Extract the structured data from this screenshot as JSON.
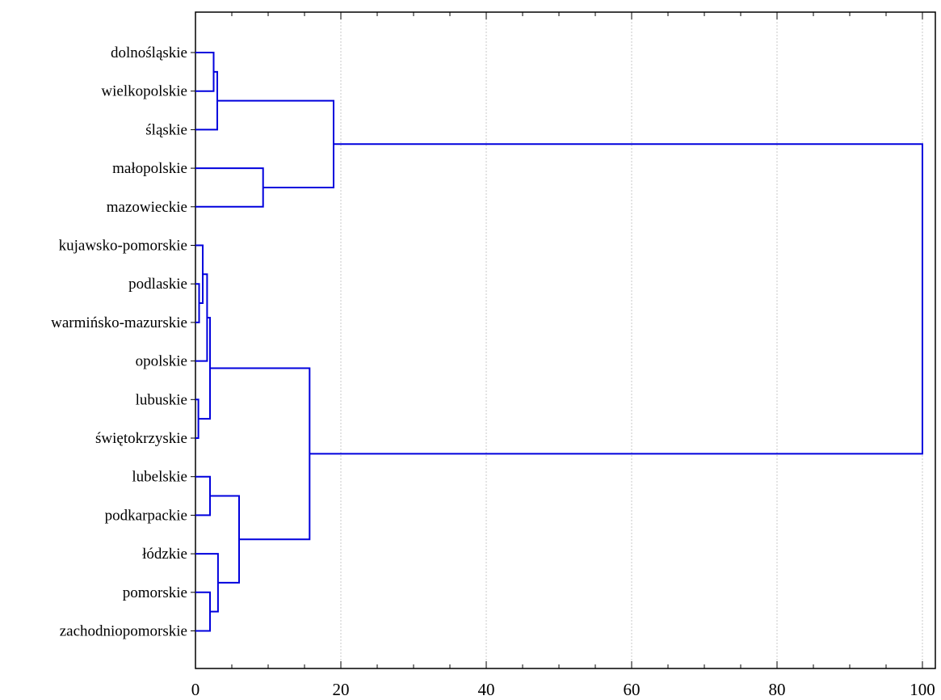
{
  "chart_data": {
    "type": "dendrogram",
    "orientation": "horizontal",
    "title": "",
    "xlabel": "",
    "ylabel": "",
    "xlim": [
      0,
      103
    ],
    "xticks": [
      0,
      20,
      40,
      60,
      80,
      100
    ],
    "xtick_labels": [
      "0",
      "20",
      "40",
      "60",
      "80",
      "100"
    ],
    "grid": "vertical dotted",
    "link_color": "#0000dd",
    "leaves": [
      "dolnośląskie",
      "wielkopolskie",
      "śląskie",
      "małopolskie",
      "mazowieckie",
      "kujawsko-pomorskie",
      "podlaskie",
      "warmińsko-mazurskie",
      "opolskie",
      "lubuskie",
      "świętokrzyskie",
      "lubelskie",
      "podkarpackie",
      "łódzkie",
      "pomorskie",
      "zachodniopomorskie"
    ],
    "merges": [
      {
        "left": "dolnośląskie",
        "right": "wielkopolskie",
        "distance": 2.5
      },
      {
        "left": "m1",
        "right": "śląskie",
        "distance": 3.0
      },
      {
        "left": "małopolskie",
        "right": "mazowieckie",
        "distance": 9.3
      },
      {
        "left": "m2",
        "right": "m3",
        "distance": 19.0
      },
      {
        "left": "podlaskie",
        "right": "warmińsko-mazurskie",
        "distance": 0.5
      },
      {
        "left": "kujawsko-pomorskie",
        "right": "m5",
        "distance": 1.0
      },
      {
        "left": "m6",
        "right": "opolskie",
        "distance": 1.6
      },
      {
        "left": "lubuskie",
        "right": "świętokrzyskie",
        "distance": 0.4
      },
      {
        "left": "m7",
        "right": "m8",
        "distance": 2.0
      },
      {
        "left": "lubelskie",
        "right": "podkarpackie",
        "distance": 2.0
      },
      {
        "left": "pomorskie",
        "right": "zachodniopomorskie",
        "distance": 2.0
      },
      {
        "left": "łódzkie",
        "right": "m11",
        "distance": 3.1
      },
      {
        "left": "m10",
        "right": "m12",
        "distance": 6.0
      },
      {
        "left": "m9",
        "right": "m13",
        "distance": 15.7
      },
      {
        "left": "m4",
        "right": "m14",
        "distance": 100
      }
    ]
  }
}
